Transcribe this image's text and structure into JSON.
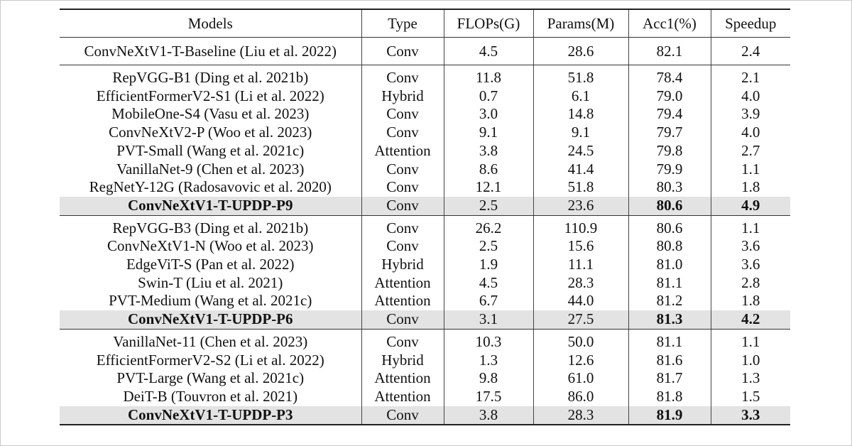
{
  "headers": [
    "Models",
    "Type",
    "FLOPs(G)",
    "Params(M)",
    "Acc1(%)",
    "Speedup"
  ],
  "baseline": {
    "model": "ConvNeXtV1-T-Baseline (Liu et al. 2022)",
    "type": "Conv",
    "flops": "4.5",
    "params": "28.6",
    "acc": "82.1",
    "speedup": "2.4"
  },
  "groups": [
    {
      "rows": [
        {
          "model": "RepVGG-B1 (Ding et al. 2021b)",
          "type": "Conv",
          "flops": "11.8",
          "params": "51.8",
          "acc": "78.4",
          "speedup": "2.1"
        },
        {
          "model": "EfficientFormerV2-S1 (Li et al. 2022)",
          "type": "Hybrid",
          "flops": "0.7",
          "params": "6.1",
          "acc": "79.0",
          "speedup": "4.0"
        },
        {
          "model": "MobileOne-S4 (Vasu et al. 2023)",
          "type": "Conv",
          "flops": "3.0",
          "params": "14.8",
          "acc": "79.4",
          "speedup": "3.9"
        },
        {
          "model": "ConvNeXtV2-P (Woo et al. 2023)",
          "type": "Conv",
          "flops": "9.1",
          "params": "9.1",
          "acc": "79.7",
          "speedup": "4.0"
        },
        {
          "model": "PVT-Small (Wang et al. 2021c)",
          "type": "Attention",
          "flops": "3.8",
          "params": "24.5",
          "acc": "79.8",
          "speedup": "2.7"
        },
        {
          "model": "VanillaNet-9 (Chen et al. 2023)",
          "type": "Conv",
          "flops": "8.6",
          "params": "41.4",
          "acc": "79.9",
          "speedup": "1.1"
        },
        {
          "model": "RegNetY-12G (Radosavovic et al. 2020)",
          "type": "Conv",
          "flops": "12.1",
          "params": "51.8",
          "acc": "80.3",
          "speedup": "1.8"
        }
      ],
      "highlight": {
        "model": "ConvNeXtV1-T-UPDP-P9",
        "type": "Conv",
        "flops": "2.5",
        "params": "23.6",
        "acc": "80.6",
        "speedup": "4.9"
      }
    },
    {
      "rows": [
        {
          "model": "RepVGG-B3 (Ding et al. 2021b)",
          "type": "Conv",
          "flops": "26.2",
          "params": "110.9",
          "acc": "80.6",
          "speedup": "1.1"
        },
        {
          "model": "ConvNeXtV1-N (Woo et al. 2023)",
          "type": "Conv",
          "flops": "2.5",
          "params": "15.6",
          "acc": "80.8",
          "speedup": "3.6"
        },
        {
          "model": "EdgeViT-S (Pan et al. 2022)",
          "type": "Hybrid",
          "flops": "1.9",
          "params": "11.1",
          "acc": "81.0",
          "speedup": "3.6"
        },
        {
          "model": "Swin-T (Liu et al. 2021)",
          "type": "Attention",
          "flops": "4.5",
          "params": "28.3",
          "acc": "81.1",
          "speedup": "2.8"
        },
        {
          "model": "PVT-Medium (Wang et al. 2021c)",
          "type": "Attention",
          "flops": "6.7",
          "params": "44.0",
          "acc": "81.2",
          "speedup": "1.8"
        }
      ],
      "highlight": {
        "model": "ConvNeXtV1-T-UPDP-P6",
        "type": "Conv",
        "flops": "3.1",
        "params": "27.5",
        "acc": "81.3",
        "speedup": "4.2"
      }
    },
    {
      "rows": [
        {
          "model": "VanillaNet-11 (Chen et al. 2023)",
          "type": "Conv",
          "flops": "10.3",
          "params": "50.0",
          "acc": "81.1",
          "speedup": "1.1"
        },
        {
          "model": "EfficientFormerV2-S2 (Li et al. 2022)",
          "type": "Hybrid",
          "flops": "1.3",
          "params": "12.6",
          "acc": "81.6",
          "speedup": "1.0"
        },
        {
          "model": "PVT-Large (Wang et al. 2021c)",
          "type": "Attention",
          "flops": "9.8",
          "params": "61.0",
          "acc": "81.7",
          "speedup": "1.3"
        },
        {
          "model": "DeiT-B (Touvron et al. 2021)",
          "type": "Attention",
          "flops": "17.5",
          "params": "86.0",
          "acc": "81.8",
          "speedup": "1.5"
        }
      ],
      "highlight": {
        "model": "ConvNeXtV1-T-UPDP-P3",
        "type": "Conv",
        "flops": "3.8",
        "params": "28.3",
        "acc": "81.9",
        "speedup": "3.3"
      }
    }
  ]
}
